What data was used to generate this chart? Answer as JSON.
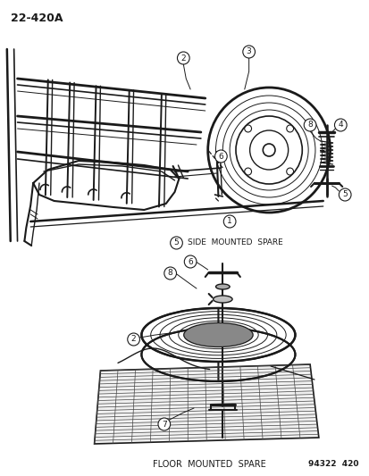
{
  "title": "22-420A",
  "bg_color": "#ffffff",
  "fig_width": 4.14,
  "fig_height": 5.33,
  "dpi": 100,
  "line_color": "#1a1a1a",
  "text_color": "#1a1a1a",
  "side_label": "SIDE  MOUNTED  SPARE",
  "floor_label": "FLOOR  MOUNTED  SPARE",
  "ref_number": "94322  420",
  "diagram_number": "22-420A"
}
